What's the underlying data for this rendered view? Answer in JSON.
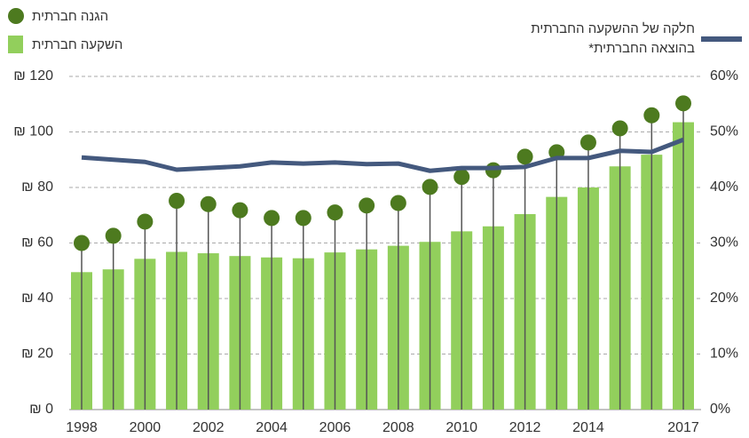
{
  "chart_data": {
    "type": "bar",
    "categories": [
      "1998",
      null,
      "2000",
      null,
      "2002",
      null,
      "2004",
      null,
      "2006",
      null,
      "2008",
      null,
      "2010",
      null,
      "2012",
      null,
      "2014",
      null,
      null,
      "2017"
    ],
    "series": [
      {
        "name": "השקעה חברתית",
        "type": "bar",
        "color": "#92cf5c",
        "values": [
          49.5,
          50.5,
          54.3,
          56.8,
          56.3,
          55.3,
          54.8,
          54.5,
          56.6,
          57.7,
          59,
          60.4,
          64.2,
          66,
          70.4,
          76.6,
          80,
          87.6,
          91.8,
          103.5
        ]
      },
      {
        "name": "הגנה חברתית",
        "type": "dot",
        "color": "#4d7a1f",
        "values": [
          60,
          62.6,
          67.7,
          75.2,
          74,
          71.8,
          69,
          69,
          71,
          73.5,
          74.4,
          80.2,
          83.8,
          86.2,
          91.1,
          92.7,
          96.2,
          101.3,
          106,
          110.3
        ]
      },
      {
        "name": "חלקה של ההשקעה החברתית בהוצאה החברתית*",
        "type": "line",
        "axis": "y2",
        "color": "#44597e",
        "values": [
          45.4,
          45,
          44.6,
          43.2,
          43.5,
          43.8,
          44.5,
          44.3,
          44.5,
          44.2,
          44.3,
          43,
          43.5,
          43.5,
          43.7,
          45.3,
          45.3,
          46.6,
          46.4,
          48.6
        ]
      }
    ],
    "ylim": [
      0,
      120
    ],
    "yticks": [
      {
        "value": 0,
        "label": "₪ 0"
      },
      {
        "value": 20,
        "label": "₪ 20"
      },
      {
        "value": 40,
        "label": "₪ 40"
      },
      {
        "value": 60,
        "label": "₪ 60"
      },
      {
        "value": 80,
        "label": "₪ 80"
      },
      {
        "value": 100,
        "label": "₪ 100"
      },
      {
        "value": 120,
        "label": "₪ 120"
      }
    ],
    "y2lim": [
      0,
      60
    ],
    "y2ticks": [
      {
        "value": 0,
        "label": "0%"
      },
      {
        "value": 10,
        "label": "10%"
      },
      {
        "value": 20,
        "label": "20%"
      },
      {
        "value": 30,
        "label": "30%"
      },
      {
        "value": 40,
        "label": "40%"
      },
      {
        "value": 50,
        "label": "50%"
      },
      {
        "value": 60,
        "label": "60%"
      }
    ],
    "grid": true
  }
}
